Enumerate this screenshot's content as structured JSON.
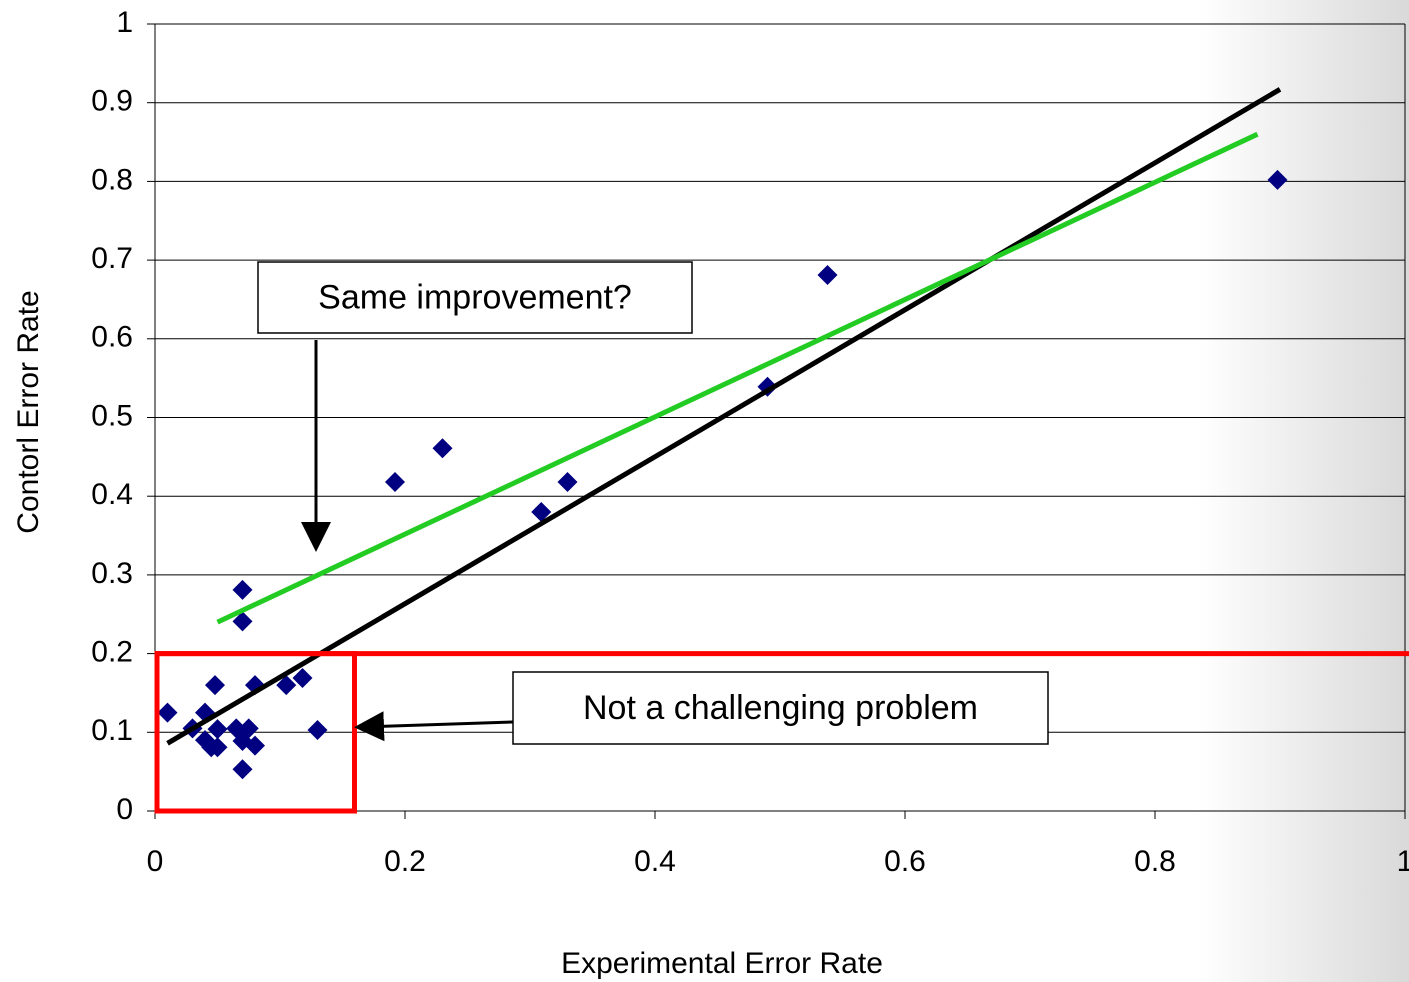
{
  "chart_data": {
    "type": "scatter",
    "x_label": "Experimental Error Rate",
    "y_label": "Contorl Error Rate",
    "xlim": [
      0,
      1
    ],
    "ylim": [
      0,
      1
    ],
    "xticks": [
      0,
      0.2,
      0.4,
      0.6,
      0.8,
      1
    ],
    "yticks": [
      0,
      0.1,
      0.2,
      0.3,
      0.4,
      0.5,
      0.6,
      0.7,
      0.8,
      0.9,
      1
    ],
    "grid": true,
    "series": [
      {
        "color": "#000080",
        "x": [
          0.01,
          0.03,
          0.04,
          0.04,
          0.045,
          0.048,
          0.05,
          0.05,
          0.07,
          0.07,
          0.065,
          0.07,
          0.075,
          0.07,
          0.08,
          0.08,
          0.105,
          0.118,
          0.13,
          0.192,
          0.23,
          0.309,
          0.33,
          0.49,
          0.538,
          0.898
        ],
        "values": [
          0.125,
          0.105,
          0.125,
          0.09,
          0.081,
          0.16,
          0.104,
          0.081,
          0.281,
          0.241,
          0.105,
          0.089,
          0.105,
          0.053,
          0.083,
          0.16,
          0.16,
          0.169,
          0.103,
          0.418,
          0.461,
          0.38,
          0.418,
          0.539,
          0.681,
          0.802
        ]
      }
    ],
    "lines": [
      {
        "color": "#000000",
        "x": [
          0.01,
          0.9
        ],
        "y": [
          0.086,
          0.917
        ]
      },
      {
        "color": "#22cc22",
        "x": [
          0.05,
          0.882
        ],
        "y": [
          0.24,
          0.86
        ]
      }
    ],
    "threshold": {
      "y": 0.2,
      "color": "#ff0000"
    },
    "highlight": {
      "x": [
        0,
        0.158
      ],
      "y": [
        0,
        0.2
      ],
      "color": "#ff0000"
    },
    "annotations": [
      "Same improvement?",
      "Not a challenging problem"
    ]
  }
}
